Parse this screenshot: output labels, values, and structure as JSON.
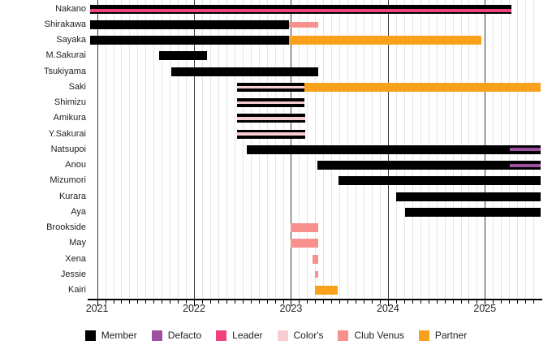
{
  "chart_data": {
    "type": "gantt",
    "variant": "horizontal-bar-timeline",
    "title": "",
    "x_axis": {
      "start": 2020.92,
      "end": 2025.575,
      "year_ticks": [
        2021,
        2022,
        2023,
        2024,
        2025
      ],
      "minor_tick_unit": "month",
      "grid": true
    },
    "legend_position": "bottom",
    "colors": {
      "member": "#000000",
      "defacto": "#9d50a0",
      "leader": "#f2427e",
      "colors": "#f8ccd3",
      "club_venus": "#f8908e",
      "partner": "#f9a11b"
    },
    "legend": [
      {
        "label": "Member",
        "color_key": "member"
      },
      {
        "label": "Defacto",
        "color_key": "defacto"
      },
      {
        "label": "Leader",
        "color_key": "leader"
      },
      {
        "label": "Color's",
        "color_key": "colors"
      },
      {
        "label": "Club Venus",
        "color_key": "club_venus"
      },
      {
        "label": "Partner",
        "color_key": "partner"
      }
    ],
    "rows": [
      {
        "name": "Nakano",
        "segments": [
          {
            "type": "member",
            "start": 2020.925,
            "end": 2025.27
          }
        ],
        "overlays": [
          {
            "type": "leader",
            "start": 2020.925,
            "end": 2025.275
          }
        ]
      },
      {
        "name": "Shirakawa",
        "segments": [
          {
            "type": "member",
            "start": 2020.925,
            "end": 2022.98
          },
          {
            "type": "club_venus_mid",
            "start": 2022.98,
            "end": 2023.28
          }
        ]
      },
      {
        "name": "Sayaka",
        "segments": [
          {
            "type": "member",
            "start": 2020.925,
            "end": 2022.98
          },
          {
            "type": "partner",
            "start": 2022.98,
            "end": 2024.96
          }
        ]
      },
      {
        "name": "M.Sakurai",
        "segments": [
          {
            "type": "member",
            "start": 2021.64,
            "end": 2022.135
          }
        ]
      },
      {
        "name": "Tsukiyama",
        "segments": [
          {
            "type": "member",
            "start": 2021.765,
            "end": 2023.28
          }
        ]
      },
      {
        "name": "Saki",
        "segments": [
          {
            "type": "member_colors",
            "start": 2022.44,
            "end": 2023.135
          },
          {
            "type": "partner",
            "start": 2023.135,
            "end": 2025.575
          }
        ]
      },
      {
        "name": "Shimizu",
        "segments": [
          {
            "type": "member_colors",
            "start": 2022.44,
            "end": 2023.14
          }
        ]
      },
      {
        "name": "Amikura",
        "segments": [
          {
            "type": "member_colors",
            "start": 2022.44,
            "end": 2023.145
          }
        ]
      },
      {
        "name": "Y.Sakurai",
        "segments": [
          {
            "type": "member_colors",
            "start": 2022.44,
            "end": 2023.145
          }
        ]
      },
      {
        "name": "Natsupoi",
        "segments": [
          {
            "type": "member",
            "start": 2022.54,
            "end": 2025.575
          }
        ],
        "overlays": [
          {
            "type": "defacto",
            "start": 2025.255,
            "end": 2025.575
          }
        ]
      },
      {
        "name": "Anou",
        "segments": [
          {
            "type": "member",
            "start": 2023.27,
            "end": 2025.575
          }
        ],
        "overlays": [
          {
            "type": "defacto",
            "start": 2025.255,
            "end": 2025.575
          }
        ]
      },
      {
        "name": "Mizumori",
        "segments": [
          {
            "type": "member",
            "start": 2023.49,
            "end": 2025.575
          }
        ]
      },
      {
        "name": "Kurara",
        "segments": [
          {
            "type": "member",
            "start": 2024.085,
            "end": 2025.575
          }
        ]
      },
      {
        "name": "Aya",
        "segments": [
          {
            "type": "member",
            "start": 2024.175,
            "end": 2025.575
          }
        ]
      },
      {
        "name": "Brookside",
        "segments": [
          {
            "type": "club_venus",
            "start": 2022.995,
            "end": 2023.28
          }
        ]
      },
      {
        "name": "May",
        "segments": [
          {
            "type": "club_venus",
            "start": 2022.995,
            "end": 2023.28
          }
        ]
      },
      {
        "name": "Xena",
        "segments": [
          {
            "type": "club_venus",
            "start": 2023.225,
            "end": 2023.28
          }
        ]
      },
      {
        "name": "Jessie",
        "segments": [
          {
            "type": "club_venus_small",
            "start": 2023.25,
            "end": 2023.28
          }
        ]
      },
      {
        "name": "Kairi",
        "segments": [
          {
            "type": "partner",
            "start": 2023.245,
            "end": 2023.48
          }
        ]
      }
    ]
  }
}
